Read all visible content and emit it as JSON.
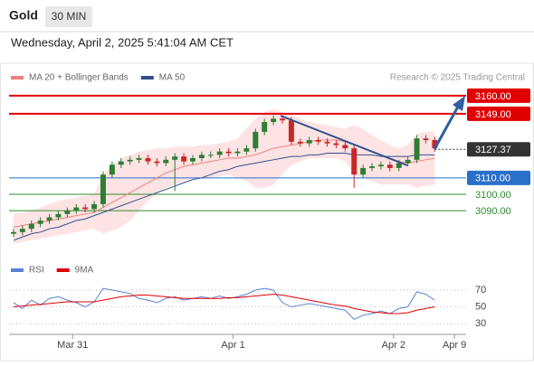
{
  "chart_data": [
    {
      "type": "candlestick",
      "title": "Gold",
      "timeframe": "30 MIN",
      "subtitle": "Wednesday, April 2, 2025 5:41:04 AM CET",
      "source": "Research © 2025 Trading Central",
      "up_color": "#2e7d32",
      "down_color": "#c62828",
      "xlim": [
        -0.5,
        50.5
      ],
      "xticks": [
        {
          "value": 6.6,
          "label": "Mar 31"
        },
        {
          "value": 24.5,
          "label": "Apr 1"
        },
        {
          "value": 42.4,
          "label": "Apr 2"
        },
        {
          "value": 49.2,
          "label": "Apr 9"
        }
      ],
      "ylim": [
        3067,
        3166
      ],
      "open": [
        3076,
        3077,
        3079,
        3082,
        3084,
        3086,
        3088,
        3090,
        3092,
        3091,
        3094,
        3112,
        3118,
        3120,
        3121,
        3122,
        3120,
        3119,
        3121,
        3123,
        3120,
        3122,
        3124,
        3124,
        3126,
        3125,
        3126,
        3128,
        3138,
        3144,
        3146,
        3145,
        3132,
        3131,
        3133,
        3132,
        3131,
        3130,
        3128,
        3112,
        3116,
        3117,
        3118,
        3116,
        3119,
        3121,
        3134,
        3133
      ],
      "high": [
        3079,
        3081,
        3084,
        3086,
        3088,
        3090,
        3092,
        3094,
        3094,
        3096,
        3114,
        3120,
        3122,
        3123,
        3124,
        3124,
        3122,
        3123,
        3125,
        3125,
        3124,
        3126,
        3126,
        3128,
        3128,
        3128,
        3130,
        3140,
        3146,
        3148,
        3148,
        3147,
        3134,
        3135,
        3135,
        3134,
        3133,
        3132,
        3130,
        3118,
        3119,
        3120,
        3120,
        3121,
        3123,
        3136,
        3136,
        3135
      ],
      "low": [
        3074,
        3075,
        3077,
        3080,
        3082,
        3084,
        3086,
        3088,
        3089,
        3089,
        3092,
        3110,
        3116,
        3118,
        3119,
        3118,
        3117,
        3117,
        3102,
        3118,
        3118,
        3120,
        3122,
        3122,
        3123,
        3123,
        3124,
        3126,
        3136,
        3142,
        3143,
        3130,
        3129,
        3129,
        3130,
        3129,
        3128,
        3126,
        3104,
        3110,
        3114,
        3115,
        3114,
        3114,
        3117,
        3119,
        3131,
        3126
      ],
      "close": [
        3077,
        3079,
        3082,
        3084,
        3086,
        3088,
        3090,
        3092,
        3091,
        3094,
        3112,
        3118,
        3120,
        3121,
        3122,
        3120,
        3119,
        3121,
        3123,
        3120,
        3122,
        3124,
        3124,
        3126,
        3125,
        3126,
        3128,
        3138,
        3144,
        3146,
        3145,
        3132,
        3131,
        3133,
        3132,
        3131,
        3130,
        3128,
        3112,
        3116,
        3117,
        3118,
        3116,
        3119,
        3121,
        3134,
        3133,
        3128
      ],
      "overlays": [
        {
          "name": "MA 20 + Bollinger Bands",
          "color": "#f08080",
          "band_color": "#fde3e3",
          "values": [
            3080,
            3081,
            3082,
            3083,
            3084,
            3085,
            3086,
            3087,
            3088,
            3089,
            3092,
            3095,
            3098,
            3101,
            3104,
            3107,
            3110,
            3113,
            3115,
            3117,
            3118,
            3119,
            3120,
            3121,
            3122,
            3122,
            3123,
            3124,
            3126,
            3128,
            3129,
            3130,
            3131,
            3132,
            3133,
            3133,
            3133,
            3132,
            3130,
            3128,
            3126,
            3124,
            3122,
            3120,
            3119,
            3120,
            3121,
            3122
          ],
          "upper": [
            3088,
            3089,
            3090,
            3092,
            3094,
            3096,
            3097,
            3098,
            3099,
            3100,
            3112,
            3118,
            3122,
            3124,
            3126,
            3127,
            3128,
            3128,
            3129,
            3129,
            3129,
            3130,
            3130,
            3131,
            3132,
            3134,
            3140,
            3146,
            3150,
            3152,
            3150,
            3148,
            3146,
            3144,
            3143,
            3142,
            3141,
            3140,
            3142,
            3140,
            3136,
            3133,
            3130,
            3128,
            3130,
            3137,
            3138,
            3138
          ],
          "lower": [
            3070,
            3071,
            3072,
            3073,
            3074,
            3075,
            3076,
            3077,
            3078,
            3079,
            3076,
            3078,
            3080,
            3084,
            3090,
            3096,
            3100,
            3104,
            3106,
            3108,
            3110,
            3110,
            3110,
            3111,
            3112,
            3110,
            3108,
            3104,
            3104,
            3106,
            3112,
            3118,
            3120,
            3122,
            3122,
            3122,
            3122,
            3120,
            3112,
            3110,
            3108,
            3106,
            3106,
            3106,
            3106,
            3104,
            3105,
            3106
          ]
        },
        {
          "name": "MA 50",
          "color": "#2f4f8f",
          "values": [
            3072,
            3074,
            3076,
            3077,
            3079,
            3080,
            3082,
            3084,
            3085,
            3087,
            3089,
            3091,
            3093,
            3095,
            3097,
            3099,
            3101,
            3103,
            3105,
            3107,
            3109,
            3110,
            3112,
            3114,
            3115,
            3117,
            3118,
            3119,
            3120,
            3121,
            3122,
            3123,
            3123,
            3124,
            3124,
            3125,
            3125,
            3125,
            3124,
            3124,
            3124,
            3123,
            3123,
            3123,
            3123,
            3124,
            3124,
            3124
          ]
        }
      ],
      "levels": [
        {
          "value": 3160,
          "label": "3160.00",
          "color": "#e00000",
          "style": "box"
        },
        {
          "value": 3149,
          "label": "3149.00",
          "color": "#e00000",
          "style": "box"
        },
        {
          "value": 3127.37,
          "label": "3127.37",
          "color": "#333333",
          "style": "current"
        },
        {
          "value": 3110,
          "label": "3110.00",
          "color": "#2a6fc9",
          "style": "box"
        },
        {
          "value": 3100,
          "label": "3100.00",
          "color": "#2e8b2e",
          "style": "text"
        },
        {
          "value": 3090,
          "label": "3090.00",
          "color": "#2e8b2e",
          "style": "text"
        }
      ]
    },
    {
      "type": "line",
      "xlim": [
        -0.5,
        50.5
      ],
      "ylim": [
        15,
        84
      ],
      "yticks": [
        30,
        50,
        70
      ],
      "series": [
        {
          "name": "RSI",
          "color": "#5b7fd6",
          "values": [
            55,
            48,
            58,
            52,
            60,
            62,
            58,
            55,
            50,
            56,
            72,
            70,
            68,
            66,
            60,
            58,
            55,
            60,
            62,
            58,
            60,
            62,
            60,
            63,
            60,
            62,
            65,
            70,
            72,
            70,
            55,
            50,
            52,
            54,
            52,
            50,
            48,
            46,
            35,
            40,
            42,
            45,
            42,
            48,
            50,
            68,
            65,
            58
          ]
        },
        {
          "name": "9MA",
          "color": "#e00000",
          "values": [
            50,
            51,
            52,
            53,
            54,
            55,
            56,
            56,
            56,
            56,
            58,
            60,
            62,
            63,
            64,
            64,
            63,
            62,
            61,
            60,
            60,
            60,
            60,
            60,
            61,
            61,
            62,
            63,
            64,
            65,
            64,
            62,
            60,
            58,
            56,
            54,
            52,
            51,
            48,
            46,
            44,
            43,
            42,
            42,
            43,
            46,
            48,
            50
          ]
        }
      ]
    }
  ]
}
